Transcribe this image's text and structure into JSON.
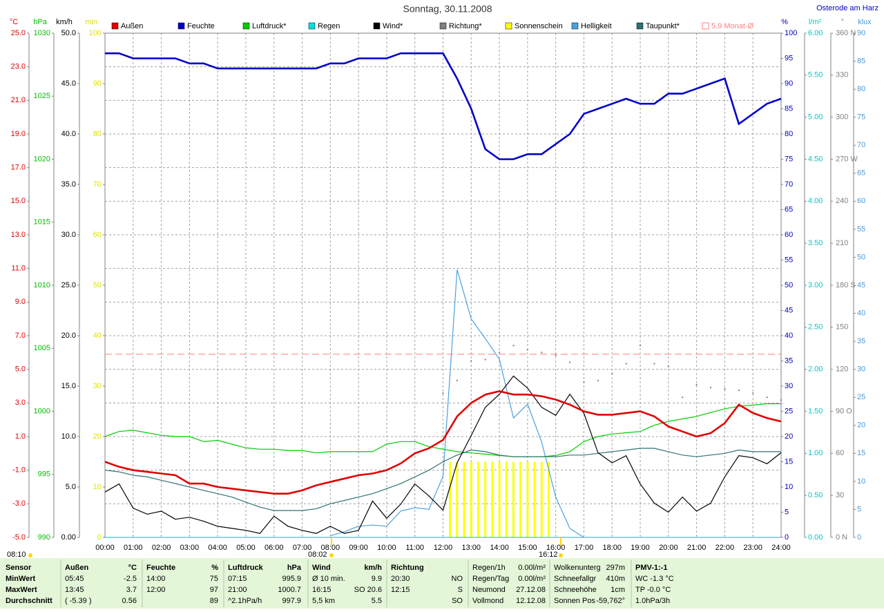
{
  "chart_data": {
    "type": "line",
    "title": "Sonntag, 30.11.2008",
    "location": "Osterode am Harz",
    "grid": true,
    "x": [
      0,
      0.5,
      1,
      1.5,
      2,
      2.5,
      3,
      3.5,
      4,
      4.5,
      5,
      5.5,
      6,
      6.5,
      7,
      7.5,
      8,
      8.5,
      9,
      9.5,
      10,
      10.5,
      11,
      11.5,
      12,
      12.5,
      13,
      13.5,
      14,
      14.5,
      15,
      15.5,
      16,
      16.5,
      17,
      17.5,
      18,
      18.5,
      19,
      19.5,
      20,
      20.5,
      21,
      21.5,
      22,
      22.5,
      23,
      23.5,
      24
    ],
    "xlim": [
      0,
      24
    ],
    "xticks": [
      {
        "value": 0,
        "label": "00:00"
      },
      {
        "value": 1,
        "label": "01:00"
      },
      {
        "value": 2,
        "label": "02:00"
      },
      {
        "value": 3,
        "label": "03:00"
      },
      {
        "value": 4,
        "label": "04:00"
      },
      {
        "value": 5,
        "label": "05:00"
      },
      {
        "value": 6,
        "label": "06:00"
      },
      {
        "value": 7,
        "label": "07:00"
      },
      {
        "value": 8,
        "label": "08:00"
      },
      {
        "value": 9,
        "label": "09:00"
      },
      {
        "value": 10,
        "label": "10:00"
      },
      {
        "value": 11,
        "label": "11:00"
      },
      {
        "value": 12,
        "label": "12:00"
      },
      {
        "value": 13,
        "label": "13:00"
      },
      {
        "value": 14,
        "label": "14:00"
      },
      {
        "value": 15,
        "label": "15:00"
      },
      {
        "value": 16,
        "label": "16:00"
      },
      {
        "value": 17,
        "label": "17:00"
      },
      {
        "value": 18,
        "label": "18:00"
      },
      {
        "value": 19,
        "label": "19:00"
      },
      {
        "value": 20,
        "label": "20:00"
      },
      {
        "value": 21,
        "label": "21:00"
      },
      {
        "value": 22,
        "label": "22:00"
      },
      {
        "value": 23,
        "label": "23:00"
      },
      {
        "value": 24,
        "label": "24:00"
      }
    ],
    "axes": [
      {
        "unit": "°C",
        "color": "#e00000",
        "lim": [
          -5,
          25
        ],
        "ticks": [
          {
            "value": 25,
            "label": "25.0"
          },
          {
            "value": 23,
            "label": "23.0"
          },
          {
            "value": 21,
            "label": "21.0"
          },
          {
            "value": 19,
            "label": "19.0"
          },
          {
            "value": 17,
            "label": "17.0"
          },
          {
            "value": 15,
            "label": "15.0"
          },
          {
            "value": 13,
            "label": "13.0"
          },
          {
            "value": 11,
            "label": "11.0"
          },
          {
            "value": 9,
            "label": "9.0"
          },
          {
            "value": 7,
            "label": "7.0"
          },
          {
            "value": 5,
            "label": "5.0"
          },
          {
            "value": 3,
            "label": "3.0"
          },
          {
            "value": 1,
            "label": "1.0"
          },
          {
            "value": -1,
            "label": "-1.0"
          },
          {
            "value": -3,
            "label": "-3.0"
          },
          {
            "value": -5,
            "label": "-5.0"
          }
        ]
      },
      {
        "unit": "hPa",
        "color": "#00c000",
        "lim": [
          990,
          1030
        ],
        "ticks": [
          1030,
          1025,
          1020,
          1015,
          1010,
          1005,
          1000,
          995,
          990
        ]
      },
      {
        "unit": "km/h",
        "color": "#000000",
        "lim": [
          0,
          50
        ],
        "ticks": [
          {
            "value": 50,
            "label": "50.0"
          },
          {
            "value": 45,
            "label": "45.0"
          },
          {
            "value": 40,
            "label": "40.0"
          },
          {
            "value": 35,
            "label": "35.0"
          },
          {
            "value": 30,
            "label": "30.0"
          },
          {
            "value": 25,
            "label": "25.0"
          },
          {
            "value": 20,
            "label": "20.0"
          },
          {
            "value": 15,
            "label": "15.0"
          },
          {
            "value": 10,
            "label": "10.0"
          },
          {
            "value": 5,
            "label": "5.0"
          },
          {
            "value": 0,
            "label": "0.00"
          }
        ]
      },
      {
        "unit": "min",
        "color": "#e0e000",
        "lim": [
          0,
          100
        ],
        "ticks": [
          100,
          90,
          80,
          70,
          60,
          50,
          40,
          30,
          20,
          10,
          0
        ]
      },
      {
        "unit": "%",
        "color": "#0000c0",
        "lim": [
          0,
          100
        ],
        "ticks": [
          100,
          95,
          90,
          85,
          80,
          75,
          70,
          65,
          60,
          55,
          50,
          45,
          40,
          35,
          30,
          25,
          20,
          15,
          10,
          5,
          0
        ]
      },
      {
        "unit": "l/m²",
        "color": "#00c8c8",
        "lim": [
          0,
          6
        ],
        "ticks": [
          {
            "value": 6,
            "label": "6.00"
          },
          {
            "value": 5.5,
            "label": "5.50"
          },
          {
            "value": 5,
            "label": "5.00"
          },
          {
            "value": 4.5,
            "label": "4.50"
          },
          {
            "value": 4,
            "label": "4.00"
          },
          {
            "value": 3.5,
            "label": "3.50"
          },
          {
            "value": 3,
            "label": "3.00"
          },
          {
            "value": 2.5,
            "label": "2.50"
          },
          {
            "value": 2,
            "label": "2.00"
          },
          {
            "value": 1.5,
            "label": "1.50"
          },
          {
            "value": 1,
            "label": "1.00"
          },
          {
            "value": 0.5,
            "label": "0.50"
          },
          {
            "value": 0,
            "label": "0.00"
          }
        ]
      },
      {
        "unit": "°",
        "color": "#808080",
        "lim": [
          0,
          360
        ],
        "ticks": [
          {
            "value": 360,
            "label": "360 N"
          },
          330,
          300,
          {
            "value": 270,
            "label": "270 W"
          },
          240,
          210,
          {
            "value": 180,
            "label": "180 S"
          },
          150,
          120,
          {
            "value": 90,
            "label": "90 O"
          },
          60,
          30,
          {
            "value": 0,
            "label": "0 N"
          }
        ]
      },
      {
        "unit": "klux",
        "color": "#4a9ad8",
        "lim": [
          0,
          90
        ],
        "ticks": [
          90,
          85,
          80,
          75,
          70,
          65,
          60,
          55,
          50,
          45,
          40,
          35,
          30,
          25,
          20,
          15,
          10,
          5,
          0
        ]
      }
    ],
    "series": [
      {
        "name": "Außen",
        "color": "#e00000",
        "axis": 0,
        "style": "line",
        "values": [
          -0.5,
          -0.8,
          -1.0,
          -1.1,
          -1.2,
          -1.3,
          -1.8,
          -1.8,
          -2.0,
          -2.1,
          -2.2,
          -2.3,
          -2.4,
          -2.4,
          -2.2,
          -1.9,
          -1.7,
          -1.5,
          -1.3,
          -1.2,
          -1.0,
          -0.6,
          0.0,
          0.3,
          0.8,
          2.2,
          3.0,
          3.5,
          3.7,
          3.5,
          3.5,
          3.4,
          3.2,
          2.9,
          2.5,
          2.3,
          2.3,
          2.4,
          2.5,
          2.2,
          1.6,
          1.3,
          1.0,
          1.2,
          1.8,
          2.9,
          2.4,
          2.1,
          1.9
        ]
      },
      {
        "name": "Feuchte",
        "color": "#0000c8",
        "axis": 4,
        "style": "line",
        "values": [
          96,
          96,
          95,
          95,
          95,
          95,
          94,
          94,
          93,
          93,
          93,
          93,
          93,
          93,
          93,
          93,
          94,
          94,
          95,
          95,
          95,
          96,
          96,
          96,
          96,
          91,
          85,
          77,
          75,
          75,
          76,
          76,
          78,
          80,
          84,
          85,
          86,
          87,
          86,
          86,
          88,
          88,
          89,
          90,
          91,
          82,
          84,
          86,
          87
        ]
      },
      {
        "name": "Luftdruck*",
        "color": "#00cc00",
        "axis": 1,
        "style": "line",
        "values": [
          998.0,
          998.4,
          998.5,
          998.3,
          998.1,
          998.0,
          998.0,
          997.6,
          997.7,
          997.4,
          997.1,
          997.0,
          997.0,
          996.9,
          996.9,
          996.7,
          996.8,
          996.8,
          996.8,
          996.8,
          997.4,
          997.6,
          997.6,
          997.2,
          997.0,
          996.8,
          996.7,
          996.6,
          996.5,
          996.4,
          996.4,
          996.4,
          996.5,
          996.8,
          997.6,
          998.0,
          998.2,
          998.3,
          998.4,
          998.9,
          999.2,
          999.4,
          999.6,
          999.9,
          1000.2,
          1000.4,
          1000.5,
          1000.6,
          1000.6
        ]
      },
      {
        "name": "Regen",
        "color": "#00e0e0",
        "axis": 5,
        "style": "line",
        "values": [
          0,
          0,
          0,
          0,
          0,
          0,
          0,
          0,
          0,
          0,
          0,
          0,
          0,
          0,
          0,
          0,
          0,
          0,
          0,
          0,
          0,
          0,
          0,
          0,
          0,
          0,
          0,
          0,
          0,
          0,
          0,
          0,
          0,
          0,
          0,
          0,
          0,
          0,
          0,
          0,
          0,
          0,
          0,
          0,
          0,
          0,
          0,
          0,
          0
        ]
      },
      {
        "name": "Wind*",
        "color": "#000000",
        "axis": 2,
        "style": "line",
        "values": [
          4.5,
          5.3,
          2.9,
          2.3,
          2.6,
          1.8,
          2.0,
          1.6,
          1.1,
          0.9,
          0.7,
          0.4,
          2.1,
          1.1,
          0.7,
          0.4,
          1.1,
          0.4,
          0.7,
          3.6,
          1.9,
          3.3,
          5.3,
          4.1,
          2.7,
          7.4,
          10.1,
          12.9,
          14.2,
          16.0,
          14.8,
          12.9,
          12.1,
          14.2,
          12.3,
          8.4,
          7.4,
          8.1,
          5.3,
          3.4,
          2.5,
          4.0,
          2.6,
          3.4,
          6.0,
          8.1,
          7.9,
          7.3,
          8.4
        ]
      },
      {
        "name": "Richtung*",
        "color": "#808080",
        "axis": 6,
        "style": "dots",
        "values": [
          null,
          null,
          null,
          null,
          null,
          null,
          null,
          null,
          null,
          null,
          null,
          null,
          null,
          null,
          null,
          null,
          null,
          null,
          null,
          null,
          null,
          null,
          null,
          null,
          103,
          112,
          126,
          127,
          132,
          137,
          134,
          132,
          130,
          125,
          111,
          112,
          117,
          124,
          137,
          124,
          122,
          100,
          109,
          107,
          106,
          105,
          103,
          100,
          98
        ]
      },
      {
        "name": "Sonnenschein",
        "color": "#ffff00",
        "axis": 3,
        "style": "bar",
        "x": [
          12.25,
          12.5,
          12.75,
          13,
          13.25,
          13.5,
          13.75,
          14,
          14.25,
          14.5,
          14.75,
          15,
          15.25,
          15.5,
          15.75
        ],
        "values": [
          15,
          15,
          15,
          15,
          15,
          15,
          15,
          15,
          15,
          15,
          15,
          15,
          15,
          15,
          15
        ]
      },
      {
        "name": "Helligkeit",
        "color": "#4aa0e0",
        "axis": 7,
        "style": "line",
        "values": [
          null,
          null,
          null,
          null,
          null,
          null,
          null,
          null,
          null,
          null,
          null,
          null,
          null,
          null,
          null,
          null,
          0.3,
          1.0,
          2.0,
          2.2,
          2.0,
          4.7,
          5.3,
          5.0,
          10.9,
          47.8,
          39.0,
          35.5,
          31.8,
          21.3,
          23.8,
          17.0,
          7.2,
          1.6,
          0,
          null,
          null,
          null,
          null,
          null,
          null,
          null,
          null,
          null,
          null,
          null,
          null,
          null,
          null
        ]
      },
      {
        "name": "Taupunkt*",
        "color": "#2f7070",
        "axis": 0,
        "style": "line",
        "values": [
          -1.0,
          -1.1,
          -1.3,
          -1.4,
          -1.6,
          -1.8,
          -2.0,
          -2.2,
          -2.4,
          -2.6,
          -2.9,
          -3.2,
          -3.4,
          -3.4,
          -3.4,
          -3.3,
          -3.0,
          -2.8,
          -2.6,
          -2.4,
          -2.1,
          -1.8,
          -1.4,
          -1.0,
          -0.5,
          -0.1,
          0.2,
          0.1,
          -0.1,
          -0.2,
          -0.2,
          -0.2,
          -0.2,
          -0.1,
          -0.1,
          0.0,
          0.1,
          0.2,
          0.3,
          0.3,
          0.1,
          -0.1,
          -0.2,
          -0.1,
          0.0,
          0.2,
          0.1,
          0.1,
          0.1
        ]
      }
    ],
    "reference": {
      "label": "5.9 Monat-Ø",
      "value": 5.9,
      "axis": 0,
      "color": "#ff8080"
    },
    "annotations": [
      "08:10",
      "08:02",
      "16:12"
    ]
  },
  "stats": {
    "blocks": [
      {
        "rows": [
          {
            "left": "Sensor"
          },
          {
            "left": "MinWert"
          },
          {
            "left": "MaxWert"
          },
          {
            "left": "Durchschnitt"
          }
        ]
      },
      {
        "rows": [
          {
            "left": "Außen",
            "right": "°C"
          },
          {
            "left": "05:45",
            "right": "-2.5"
          },
          {
            "left": "13:45",
            "right": "3.7"
          },
          {
            "left": "( -5.39 )",
            "right": "0.56"
          }
        ]
      },
      {
        "rows": [
          {
            "left": "Feuchte",
            "right": "%"
          },
          {
            "left": "14:00",
            "right": "75"
          },
          {
            "left": "12:00",
            "right": "97"
          },
          {
            "right": "89"
          }
        ]
      },
      {
        "rows": [
          {
            "left": "Luftdruck",
            "right": "hPa"
          },
          {
            "left": "07:15",
            "right": "995.9"
          },
          {
            "left": "21:00",
            "right": "1000.7"
          },
          {
            "left": "^2.1hPa/h",
            "right": "997.9"
          }
        ]
      },
      {
        "rows": [
          {
            "left": "Wind",
            "right": "km/h"
          },
          {
            "left": "Ø 10 min.",
            "right": "9.9"
          },
          {
            "left": "16:15",
            "right": "SO 20.6"
          },
          {
            "left": "5,5 km",
            "right": "5.5"
          }
        ]
      },
      {
        "rows": [
          {
            "left": "Richtung"
          },
          {
            "left": "20:30",
            "right": "NO"
          },
          {
            "left": "12:15",
            "right": "S"
          },
          {
            "right": "SO"
          }
        ]
      },
      {
        "rows": [
          {
            "left": "Regen/1h",
            "right": "0.00l/m²"
          },
          {
            "left": "Regen/Tag",
            "right": "0.00l/m²"
          },
          {
            "left": "Neumond",
            "right": "27.12.08"
          },
          {
            "left": "Vollmond",
            "right": "12.12.08"
          }
        ]
      },
      {
        "rows": [
          {
            "left": "Wolkenunterg",
            "right": "297m"
          },
          {
            "left": "Schneefallgr",
            "right": "410m"
          },
          {
            "left": "Schneehöhe",
            "right": "1cm"
          },
          {
            "left": "Sonnen Pos",
            "right": "-59,762°"
          }
        ]
      },
      {
        "rows": [
          {
            "left": "PMV-1:-1"
          },
          {
            "left": "WC -1.3 °C"
          },
          {
            "left": "TP -0.0 °C"
          },
          {
            "left": "1.0hPa/3h"
          }
        ]
      }
    ]
  }
}
